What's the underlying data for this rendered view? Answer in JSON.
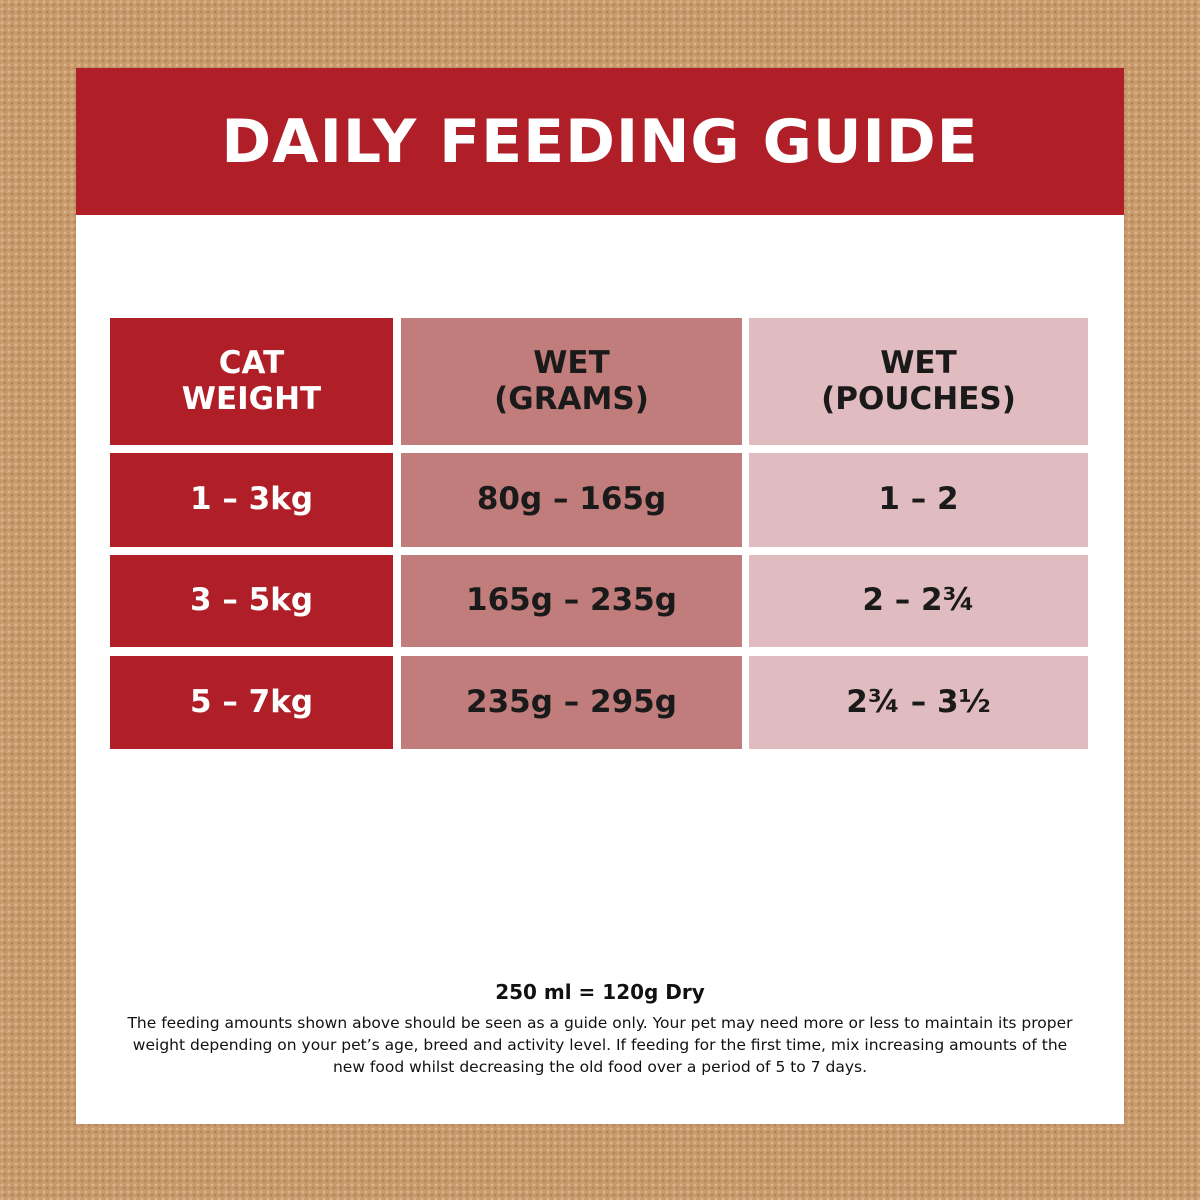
{
  "header": {
    "title": "DAILY FEEDING GUIDE"
  },
  "table": {
    "columns": [
      [
        "CAT",
        "WEIGHT"
      ],
      [
        "WET",
        "(GRAMS)"
      ],
      [
        "WET",
        "(POUCHES)"
      ]
    ],
    "rows": [
      [
        "1 – 3kg",
        "80g – 165g",
        "1 – 2"
      ],
      [
        "3 – 5kg",
        "165g – 235g",
        "2 – 2¾"
      ],
      [
        "5 – 7kg",
        "235g – 295g",
        "2¾ – 3½"
      ]
    ]
  },
  "note": {
    "title": "250 ml = 120g Dry",
    "body": "The feeding amounts shown above should be seen as a guide only. Your pet may need more or less to maintain its proper weight depending on your pet’s age, breed and activity level. If feeding for the first time, mix increasing amounts of the new food whilst decreasing the old food over a period of 5 to 7 days."
  }
}
